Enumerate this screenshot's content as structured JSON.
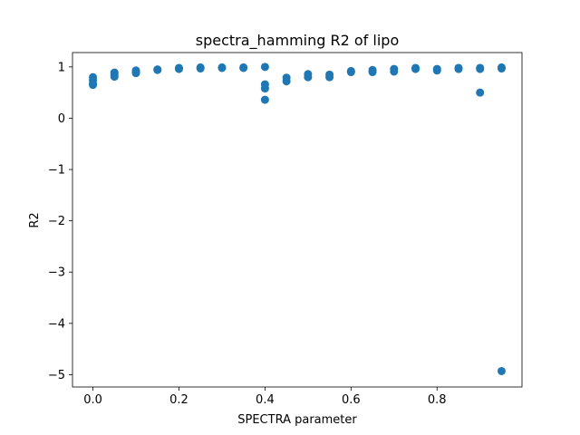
{
  "chart_data": {
    "type": "scatter",
    "title": "spectra_hamming R2 of lipo",
    "xlabel": "SPECTRA parameter",
    "ylabel": "R2",
    "xlim": [
      -0.0475,
      0.9975
    ],
    "ylim": [
      -5.24,
      1.28
    ],
    "xticks": [
      0.0,
      0.2,
      0.4,
      0.6,
      0.8
    ],
    "xtick_labels": [
      "0.0",
      "0.2",
      "0.4",
      "0.6",
      "0.8"
    ],
    "yticks": [
      1,
      0,
      -1,
      -2,
      -3,
      -4,
      -5
    ],
    "ytick_labels": [
      "1",
      "0",
      "−1",
      "−2",
      "−3",
      "−4",
      "−5"
    ],
    "grid": false,
    "legend": "none",
    "marker_color": "#1f77b4",
    "series": [
      {
        "points": [
          [
            0.0,
            0.8
          ],
          [
            0.0,
            0.74
          ],
          [
            0.0,
            0.68
          ],
          [
            0.0,
            0.65
          ],
          [
            0.05,
            0.89
          ],
          [
            0.05,
            0.86
          ],
          [
            0.05,
            0.81
          ],
          [
            0.1,
            0.93
          ],
          [
            0.1,
            0.9
          ],
          [
            0.1,
            0.88
          ],
          [
            0.15,
            0.95
          ],
          [
            0.15,
            0.94
          ],
          [
            0.2,
            0.98
          ],
          [
            0.2,
            0.96
          ],
          [
            0.25,
            0.99
          ],
          [
            0.25,
            0.97
          ],
          [
            0.3,
            0.99
          ],
          [
            0.3,
            0.98
          ],
          [
            0.35,
            0.99
          ],
          [
            0.35,
            0.98
          ],
          [
            0.4,
            1.0
          ],
          [
            0.4,
            0.66
          ],
          [
            0.4,
            0.58
          ],
          [
            0.4,
            0.36
          ],
          [
            0.45,
            0.79
          ],
          [
            0.45,
            0.72
          ],
          [
            0.5,
            0.86
          ],
          [
            0.5,
            0.8
          ],
          [
            0.55,
            0.85
          ],
          [
            0.55,
            0.8
          ],
          [
            0.6,
            0.92
          ],
          [
            0.6,
            0.9
          ],
          [
            0.65,
            0.94
          ],
          [
            0.65,
            0.9
          ],
          [
            0.7,
            0.96
          ],
          [
            0.7,
            0.91
          ],
          [
            0.75,
            0.98
          ],
          [
            0.75,
            0.96
          ],
          [
            0.8,
            0.96
          ],
          [
            0.8,
            0.93
          ],
          [
            0.85,
            0.98
          ],
          [
            0.85,
            0.96
          ],
          [
            0.9,
            0.98
          ],
          [
            0.9,
            0.96
          ],
          [
            0.9,
            0.5
          ],
          [
            0.95,
            0.99
          ],
          [
            0.95,
            0.97
          ],
          [
            0.95,
            -4.93
          ]
        ]
      }
    ]
  }
}
